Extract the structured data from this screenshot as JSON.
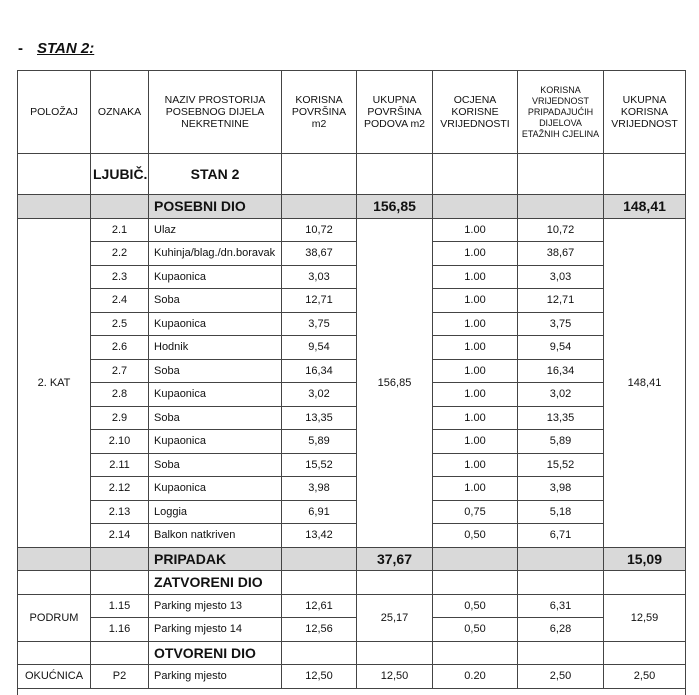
{
  "title": "STAN 2:",
  "dash": "-",
  "headers": [
    "POLOŽAJ",
    "OZNAKA",
    "NAZIV PROSTORIJA POSEBNOG DIJELA NEKRETNINE",
    "KORISNA POVRŠINA m2",
    "UKUPNA POVRŠINA PODOVA m2",
    "OCJENA KORISNE VRIJEDNOSTI",
    "KORISNA VRIJEDNOST PRIPADAJUĆIH DIJELOVA ETAŽNIH CJELINA",
    "UKUPNA KORISNA VRIJEDNOST"
  ],
  "unit_row": {
    "oznaka": "LJUBIČ.",
    "naziv": "STAN 2"
  },
  "posebni": {
    "label": "POSEBNI DIO",
    "povrsina": "156,85",
    "vrijednost": "148,41"
  },
  "kat": {
    "polozaj": "2. KAT",
    "ukupna_povrsina": "156,85",
    "ukupna_vrijednost": "148,41",
    "rows": [
      [
        "2.1",
        "Ulaz",
        "10,72",
        "1.00",
        "10,72"
      ],
      [
        "2.2",
        "Kuhinja/blag./dn.boravak",
        "38,67",
        "1.00",
        "38,67"
      ],
      [
        "2.3",
        "Kupaonica",
        "3,03",
        "1.00",
        "3,03"
      ],
      [
        "2.4",
        "Soba",
        "12,71",
        "1.00",
        "12,71"
      ],
      [
        "2.5",
        "Kupaonica",
        "3,75",
        "1.00",
        "3,75"
      ],
      [
        "2.6",
        "Hodnik",
        "9,54",
        "1.00",
        "9,54"
      ],
      [
        "2.7",
        "Soba",
        "16,34",
        "1.00",
        "16,34"
      ],
      [
        "2.8",
        "Kupaonica",
        "3,02",
        "1.00",
        "3,02"
      ],
      [
        "2.9",
        "Soba",
        "13,35",
        "1.00",
        "13,35"
      ],
      [
        "2.10",
        "Kupaonica",
        "5,89",
        "1.00",
        "5,89"
      ],
      [
        "2.11",
        "Soba",
        "15,52",
        "1.00",
        "15,52"
      ],
      [
        "2.12",
        "Kupaonica",
        "3,98",
        "1.00",
        "3,98"
      ],
      [
        "2.13",
        "Loggia",
        "6,91",
        "0,75",
        "5,18"
      ],
      [
        "2.14",
        "Balkon natkriven",
        "13,42",
        "0,50",
        "6,71"
      ]
    ]
  },
  "pripadak": {
    "label": "PRIPADAK",
    "povrsina": "37,67",
    "vrijednost": "15,09"
  },
  "zatvoreni": {
    "label": "ZATVORENI DIO"
  },
  "podrum": {
    "polozaj": "PODRUM",
    "ukupna_povrsina": "25,17",
    "ukupna_vrijednost": "12,59",
    "rows": [
      [
        "1.15",
        "Parking mjesto 13",
        "12,61",
        "0,50",
        "6,31"
      ],
      [
        "1.16",
        "Parking mjesto 14",
        "12,56",
        "0,50",
        "6,28"
      ]
    ]
  },
  "otvoreni": {
    "label": "OTVORENI DIO"
  },
  "okucnica": {
    "polozaj": "OKUĆNICA",
    "oznaka": "P2",
    "naziv": "Parking mjesto",
    "korisna": "12,50",
    "ukupna": "12,50",
    "ocjena": "0.20",
    "vrijednost": "2,50",
    "ukupna_vrijednost": "2,50"
  }
}
